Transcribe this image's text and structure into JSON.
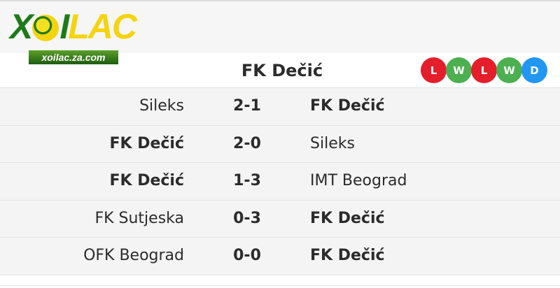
{
  "logo": {
    "text": "XOILAC",
    "subtext": "xoilac.za.com"
  },
  "team": {
    "name": "FK Dečić"
  },
  "form": [
    {
      "result": "L",
      "color": "#e41e2b"
    },
    {
      "result": "W",
      "color": "#4caf50"
    },
    {
      "result": "L",
      "color": "#e41e2b"
    },
    {
      "result": "W",
      "color": "#4caf50"
    },
    {
      "result": "D",
      "color": "#2196f3"
    }
  ],
  "matches": [
    {
      "home": "Sileks",
      "score": "2-1",
      "away": "FK Dečić",
      "bold": "away"
    },
    {
      "home": "FK Dečić",
      "score": "2-0",
      "away": "Sileks",
      "bold": "home"
    },
    {
      "home": "FK Dečić",
      "score": "1-3",
      "away": "IMT Beograd",
      "bold": "home"
    },
    {
      "home": "FK Sutjeska",
      "score": "0-3",
      "away": "FK Dečić",
      "bold": "away"
    },
    {
      "home": "OFK Beograd",
      "score": "0-0",
      "away": "FK Dečić",
      "bold": "away"
    }
  ]
}
